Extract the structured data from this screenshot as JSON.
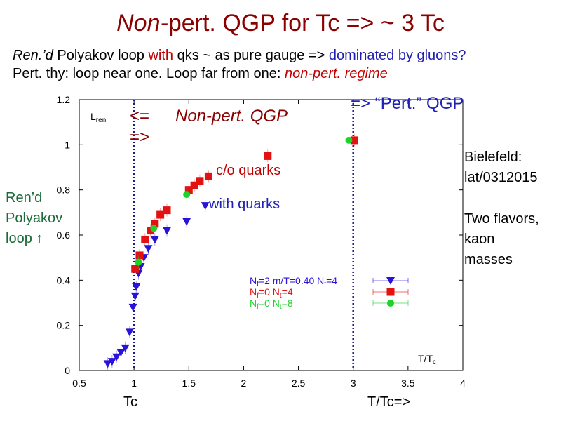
{
  "slide": {
    "title_italic": "Non-",
    "title_rest": "pert. QGP for Tc => ~ 3 Tc",
    "line1_a": "Ren.’d",
    "line1_b": " Polyakov loop ",
    "line1_c": "with",
    "line1_d": " qks ~ as pure gauge => ",
    "line1_e": "dominated by gluons?",
    "line2_a": "Pert. thy: loop near one.  Loop far from one: ",
    "line2_b": "non-pert. regime",
    "pert_qgp": "=> “Pert.” QGP",
    "nonpert_left": "<=",
    "nonpert_label": "Non-pert. QGP",
    "nonpert_right": "=>",
    "co_quarks": "c/o quarks",
    "with_quarks": "with quarks",
    "bielefeld": "Bielefeld:\nlat/0312015",
    "two_flavors": "Two flavors,\nkaon\nmasses",
    "ylabel_side": "Ren’d\nPolyakov\nloop ↑",
    "tc_below": "Tc",
    "ttc_below": "T/Tc=>"
  },
  "chart_data": {
    "type": "scatter",
    "title": "",
    "xlabel": "T/Tc",
    "ylabel": "Lren",
    "xlim": [
      0.5,
      4
    ],
    "ylim": [
      0,
      1.2
    ],
    "x_ticks": [
      0.5,
      1,
      1.5,
      2,
      2.5,
      3,
      3.5,
      4
    ],
    "x_tick_labels": [
      "0.5",
      "1",
      "1.5",
      "2",
      "2.5",
      "3",
      "3.5",
      "4"
    ],
    "y_ticks": [
      0,
      0.2,
      0.4,
      0.6,
      0.8,
      1,
      1.2
    ],
    "y_tick_labels": [
      "0",
      "0.2",
      "0.4",
      "0.6",
      "0.8",
      "1",
      "1.2"
    ],
    "vertical_lines": [
      1,
      3
    ],
    "series": [
      {
        "name": "Nf=2 m/T=0.40 Nt=4",
        "color": "#2a12d8",
        "marker": "triangle-down",
        "points": [
          [
            0.76,
            0.03
          ],
          [
            0.8,
            0.04
          ],
          [
            0.84,
            0.06
          ],
          [
            0.88,
            0.08
          ],
          [
            0.92,
            0.1
          ],
          [
            0.96,
            0.17
          ],
          [
            0.99,
            0.28
          ],
          [
            1.01,
            0.33
          ],
          [
            1.02,
            0.37
          ],
          [
            1.04,
            0.43
          ],
          [
            1.06,
            0.46
          ],
          [
            1.09,
            0.5
          ],
          [
            1.13,
            0.54
          ],
          [
            1.19,
            0.58
          ],
          [
            1.3,
            0.62
          ],
          [
            1.48,
            0.66
          ],
          [
            1.65,
            0.73
          ]
        ]
      },
      {
        "name": "Nf=0 Nt=4",
        "color": "#e31212",
        "marker": "square",
        "points": [
          [
            1.01,
            0.45
          ],
          [
            1.05,
            0.51
          ],
          [
            1.1,
            0.58
          ],
          [
            1.15,
            0.62
          ],
          [
            1.19,
            0.65
          ],
          [
            1.24,
            0.69
          ],
          [
            1.3,
            0.71
          ],
          [
            1.5,
            0.8
          ],
          [
            1.55,
            0.82
          ],
          [
            1.6,
            0.84
          ],
          [
            1.68,
            0.86
          ],
          [
            2.22,
            0.95
          ],
          [
            3.01,
            1.02
          ]
        ]
      },
      {
        "name": "Nf=0 Nt=8",
        "color": "#1ed22b",
        "marker": "circle",
        "points": [
          [
            1.04,
            0.48
          ],
          [
            1.18,
            0.63
          ],
          [
            1.48,
            0.78
          ],
          [
            2.96,
            1.02
          ]
        ]
      }
    ],
    "legend": {
      "position": "lower-right",
      "entries": [
        {
          "prefix": "N",
          "sub1": "f",
          "mid": "=2  m/T=0.40  N",
          "sub2": "t",
          "suffix": "=4",
          "color": "#2a12d8",
          "marker": "triangle-down"
        },
        {
          "prefix": "N",
          "sub1": "f",
          "mid": "=0            N",
          "sub2": "t",
          "suffix": "=4",
          "color": "#e31212",
          "marker": "square"
        },
        {
          "prefix": "N",
          "sub1": "f",
          "mid": "=0            N",
          "sub2": "t",
          "suffix": "=8",
          "color": "#1ed22b",
          "marker": "circle"
        }
      ]
    },
    "axis_label_x": {
      "main": "T/T",
      "sub": "c"
    },
    "axis_label_y": {
      "main": "L",
      "sub": "ren"
    }
  }
}
